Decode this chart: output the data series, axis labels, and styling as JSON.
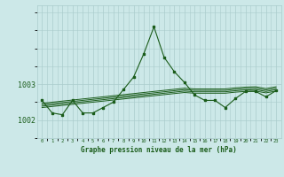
{
  "title": "Graphe pression niveau de la mer (hPa)",
  "bg_color": "#cce8e8",
  "grid_color": "#aacccc",
  "line_color": "#1a5c1a",
  "x_labels": [
    "0",
    "1",
    "2",
    "3",
    "4",
    "5",
    "6",
    "7",
    "8",
    "9",
    "10",
    "11",
    "12",
    "13",
    "14",
    "15",
    "16",
    "17",
    "18",
    "19",
    "20",
    "21",
    "22",
    "23"
  ],
  "yticks": [
    1002,
    1003
  ],
  "ylim": [
    1001.5,
    1005.2
  ],
  "xlim": [
    -0.5,
    23.5
  ],
  "main_line": [
    1002.55,
    1002.2,
    1002.15,
    1002.55,
    1002.2,
    1002.2,
    1002.35,
    1002.5,
    1002.85,
    1003.2,
    1003.85,
    1004.6,
    1003.75,
    1003.35,
    1003.05,
    1002.7,
    1002.55,
    1002.55,
    1002.35,
    1002.6,
    1002.8,
    1002.8,
    1002.65,
    1002.82
  ],
  "trend1": [
    1002.47,
    1002.5,
    1002.53,
    1002.56,
    1002.59,
    1002.62,
    1002.65,
    1002.68,
    1002.71,
    1002.74,
    1002.77,
    1002.8,
    1002.83,
    1002.86,
    1002.89,
    1002.87,
    1002.87,
    1002.87,
    1002.87,
    1002.9,
    1002.92,
    1002.93,
    1002.88,
    1002.93
  ],
  "trend2": [
    1002.43,
    1002.46,
    1002.49,
    1002.52,
    1002.55,
    1002.58,
    1002.61,
    1002.64,
    1002.67,
    1002.7,
    1002.73,
    1002.76,
    1002.79,
    1002.82,
    1002.85,
    1002.83,
    1002.83,
    1002.83,
    1002.83,
    1002.86,
    1002.88,
    1002.89,
    1002.84,
    1002.89
  ],
  "trend3": [
    1002.39,
    1002.42,
    1002.45,
    1002.48,
    1002.51,
    1002.54,
    1002.57,
    1002.6,
    1002.63,
    1002.66,
    1002.69,
    1002.72,
    1002.75,
    1002.78,
    1002.81,
    1002.79,
    1002.79,
    1002.79,
    1002.79,
    1002.82,
    1002.84,
    1002.85,
    1002.8,
    1002.85
  ],
  "trend4": [
    1002.35,
    1002.38,
    1002.41,
    1002.44,
    1002.47,
    1002.5,
    1002.53,
    1002.56,
    1002.59,
    1002.62,
    1002.65,
    1002.68,
    1002.71,
    1002.74,
    1002.77,
    1002.75,
    1002.75,
    1002.75,
    1002.75,
    1002.78,
    1002.8,
    1002.81,
    1002.76,
    1002.81
  ]
}
